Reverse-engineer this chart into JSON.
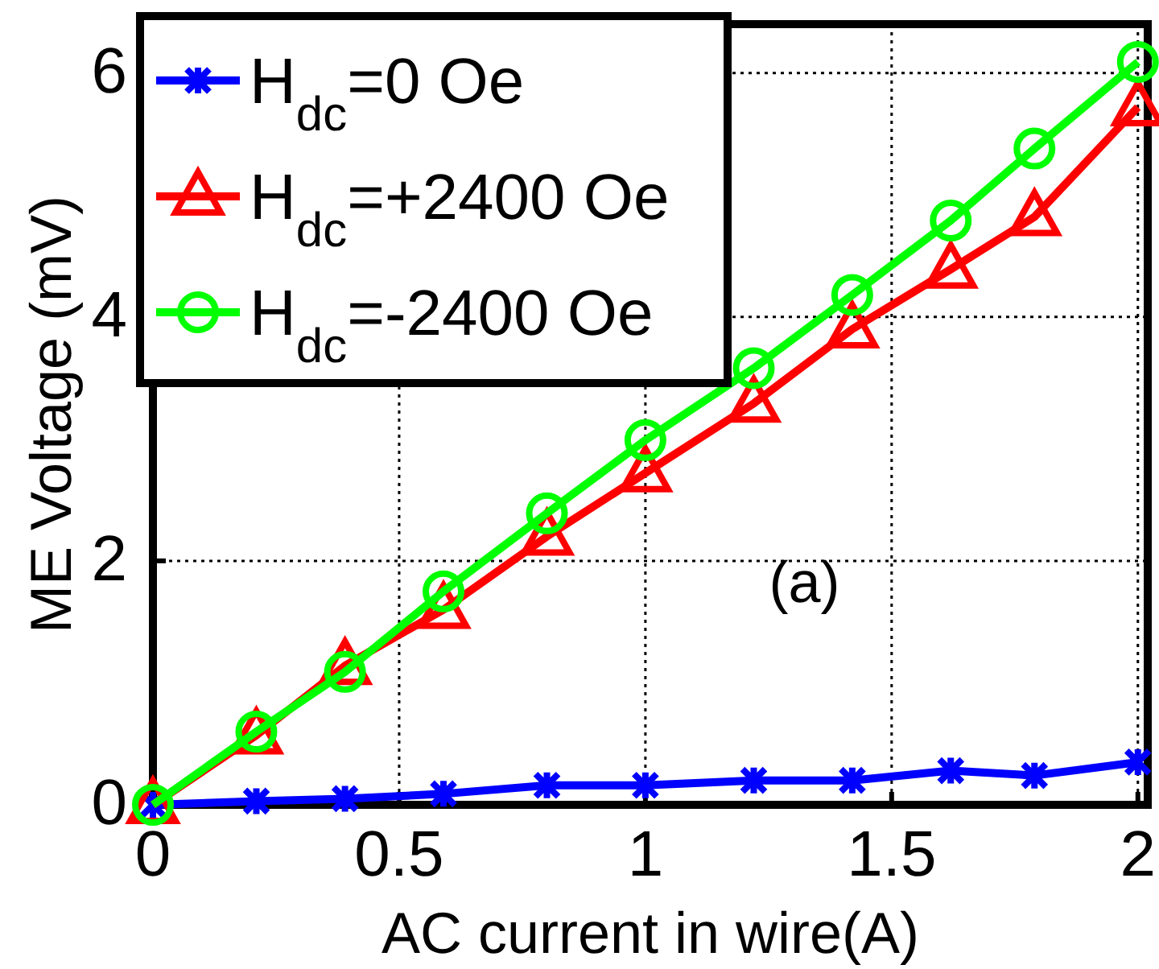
{
  "chart_data": {
    "type": "line",
    "xlabel": "AC current in wire(A)",
    "ylabel": "ME Voltage (mV)",
    "annotations": [
      "(a)"
    ],
    "x": [
      0,
      0.21,
      0.39,
      0.59,
      0.8,
      1.0,
      1.22,
      1.42,
      1.62,
      1.79,
      2.0
    ],
    "series": [
      {
        "name": "H$_{dc}$=0 Oe",
        "color": "#0000ff",
        "marker": "cross",
        "values": [
          0,
          0.03,
          0.05,
          0.09,
          0.16,
          0.16,
          0.2,
          0.2,
          0.28,
          0.24,
          0.35
        ]
      },
      {
        "name": "H$_{dc}$=+2400 Oe",
        "color": "#ff0000",
        "marker": "triangle",
        "values": [
          0,
          0.57,
          1.14,
          1.6,
          2.2,
          2.72,
          3.29,
          3.9,
          4.39,
          4.82,
          5.72
        ]
      },
      {
        "name": "H$_{dc}$=-2400 Oe",
        "color": "#00ff00",
        "marker": "circle",
        "values": [
          0,
          0.6,
          1.09,
          1.75,
          2.39,
          2.99,
          3.58,
          4.18,
          4.79,
          5.38,
          6.09
        ]
      }
    ],
    "xlim": [
      0,
      2.02
    ],
    "ylim": [
      0,
      6.4
    ],
    "xticks": [
      0,
      0.5,
      1,
      1.5,
      2
    ],
    "yticks": [
      0,
      2,
      4,
      6
    ],
    "grid": true,
    "legend": "top left",
    "line_style": "solid"
  }
}
